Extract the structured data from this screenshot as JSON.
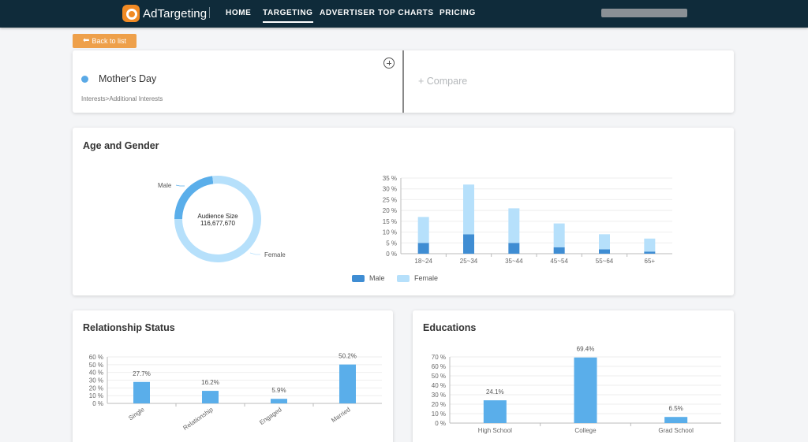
{
  "nav": {
    "logo_text": "AdTargeting",
    "items": [
      {
        "label": "HOME",
        "active": false
      },
      {
        "label": "TARGETING",
        "active": true
      },
      {
        "label": "ADVERTISER",
        "active": false
      },
      {
        "label": "TOP CHARTS",
        "active": false
      },
      {
        "label": "PRICING",
        "active": false
      }
    ]
  },
  "back_button": {
    "label": "Back to list"
  },
  "topic": {
    "name": "Mother's Day",
    "path": "Interests>Additional Interests",
    "color": "#5aa9e6"
  },
  "compare": {
    "label": "+ Compare"
  },
  "colors": {
    "male": "#3f8dd3",
    "female": "#b6e0fb",
    "bar": "#5aaeea",
    "nav_bg": "#0f2b3a",
    "back_button": "#eea04a"
  },
  "age_gender": {
    "title": "Age and Gender",
    "donut": {
      "center_label": "Audience Size",
      "center_value": "116,677,670",
      "male_label": "Male",
      "female_label": "Female"
    },
    "legend": {
      "male": "Male",
      "female": "Female"
    }
  },
  "relationship": {
    "title": "Relationship Status"
  },
  "educations": {
    "title": "Educations"
  },
  "chart_data": [
    {
      "type": "pie",
      "variant": "donut",
      "labels": [
        "Male",
        "Female"
      ],
      "values": [
        23,
        77
      ]
    },
    {
      "type": "bar",
      "stacked": true,
      "categories": [
        "18~24",
        "25~34",
        "35~44",
        "45~54",
        "55~64",
        "65+"
      ],
      "series": [
        {
          "name": "Male",
          "values": [
            5,
            9,
            5,
            3,
            2,
            1
          ]
        },
        {
          "name": "Female",
          "values": [
            12,
            23,
            16,
            11,
            7,
            6
          ]
        }
      ],
      "ylim": [
        0,
        35
      ],
      "yticks": [
        "0 %",
        "5 %",
        "10 %",
        "15 %",
        "20 %",
        "25 %",
        "30 %",
        "35 %"
      ],
      "legend": "bottom"
    },
    {
      "type": "bar",
      "categories": [
        "Single",
        "Relationship",
        "Engaged",
        "Married"
      ],
      "values": [
        27.7,
        16.2,
        5.9,
        50.2
      ],
      "data_labels": [
        "27.7%",
        "16.2%",
        "5.9%",
        "50.2%"
      ],
      "ylim": [
        0,
        60
      ],
      "yticks": [
        "0 %",
        "10 %",
        "20 %",
        "30 %",
        "40 %",
        "50 %",
        "60 %"
      ]
    },
    {
      "type": "bar",
      "categories": [
        "High School",
        "College",
        "Grad School"
      ],
      "values": [
        24.1,
        69.4,
        6.5
      ],
      "data_labels": [
        "24.1%",
        "69.4%",
        "6.5%"
      ],
      "ylim": [
        0,
        70
      ],
      "yticks": [
        "0 %",
        "10 %",
        "20 %",
        "30 %",
        "40 %",
        "50 %",
        "60 %",
        "70 %"
      ]
    }
  ]
}
